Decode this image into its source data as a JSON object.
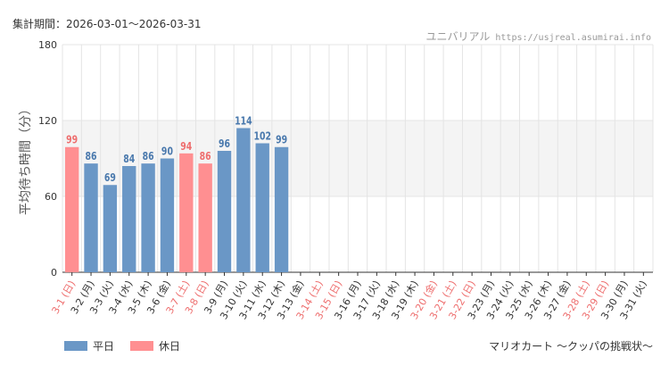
{
  "header": {
    "period": "集計期間：2026-03-01～2026-03-31",
    "brand": "ユニバリアル",
    "site": "https://usjreal.asumirai.info"
  },
  "footer": {
    "attraction": "マリオカート ～クッパの挑戦状～"
  },
  "colors": {
    "weekday": "#6a97c6",
    "holiday": "#ff8f91",
    "holiday_text": "#ee6e6e",
    "weekday_text": "#4a79ad",
    "band": "#f4f4f4",
    "grid": "#e4e4e4"
  },
  "chart_data": {
    "type": "bar",
    "ylabel": "平均待ち時間（分）",
    "ylim": [
      0,
      180
    ],
    "yticks": [
      0,
      60,
      120,
      180
    ],
    "highlight_band": [
      60,
      120
    ],
    "legend": [
      {
        "name": "平日",
        "color": "#6a97c6"
      },
      {
        "name": "休日",
        "color": "#ff8f91"
      }
    ],
    "categories": [
      "3-1 (日)",
      "3-2 (月)",
      "3-3 (火)",
      "3-4 (水)",
      "3-5 (木)",
      "3-6 (金)",
      "3-7 (土)",
      "3-8 (日)",
      "3-9 (月)",
      "3-10 (火)",
      "3-11 (水)",
      "3-12 (木)",
      "3-13 (金)",
      "3-14 (土)",
      "3-15 (日)",
      "3-16 (月)",
      "3-17 (火)",
      "3-18 (水)",
      "3-19 (木)",
      "3-20 (金)",
      "3-21 (土)",
      "3-22 (日)",
      "3-23 (月)",
      "3-24 (火)",
      "3-25 (水)",
      "3-26 (木)",
      "3-27 (金)",
      "3-28 (土)",
      "3-29 (日)",
      "3-30 (月)",
      "3-31 (火)"
    ],
    "day_type": [
      "休日",
      "平日",
      "平日",
      "平日",
      "平日",
      "平日",
      "休日",
      "休日",
      "平日",
      "平日",
      "平日",
      "平日",
      "平日",
      "休日",
      "休日",
      "平日",
      "平日",
      "平日",
      "平日",
      "休日",
      "休日",
      "休日",
      "平日",
      "平日",
      "平日",
      "平日",
      "平日",
      "休日",
      "休日",
      "平日",
      "平日"
    ],
    "values": [
      99,
      86,
      69,
      84,
      86,
      90,
      94,
      86,
      96,
      114,
      102,
      99,
      0,
      0,
      0,
      0,
      0,
      0,
      0,
      0,
      0,
      0,
      0,
      0,
      0,
      0,
      0,
      0,
      0,
      0,
      0
    ],
    "data_labels": [
      "99",
      "86",
      "69",
      "84",
      "86",
      "90",
      "94",
      "86",
      "96",
      "114",
      "102",
      "99",
      "",
      "",
      "",
      "",
      "",
      "",
      "",
      "",
      "",
      "",
      "",
      "",
      "",
      "",
      "",
      "",
      "",
      "",
      ""
    ]
  }
}
